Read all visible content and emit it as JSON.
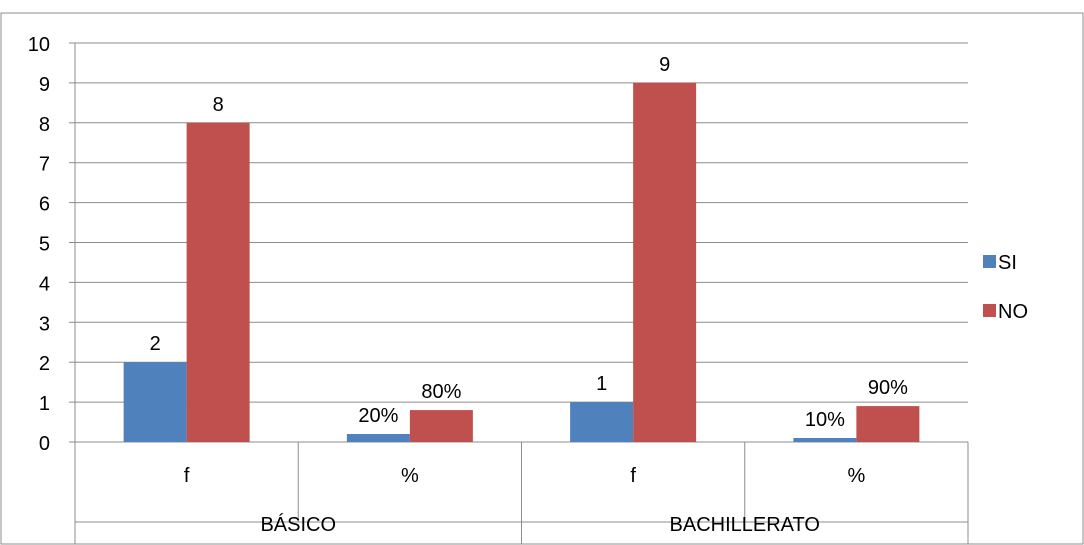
{
  "chart_data": {
    "type": "bar",
    "title": "",
    "xlabel": "",
    "ylabel": "",
    "ylim": [
      0,
      10
    ],
    "yticks": [
      "0",
      "1",
      "2",
      "3",
      "4",
      "5",
      "6",
      "7",
      "8",
      "9",
      "10"
    ],
    "grid": true,
    "legend_position": "right",
    "categories": [
      "f",
      "%",
      "f",
      "%"
    ],
    "groups": [
      {
        "label": "BÁSICO",
        "span": 2
      },
      {
        "label": "BACHILLERATO",
        "span": 2
      }
    ],
    "series": [
      {
        "name": "SI",
        "color": "#4F81BD",
        "values": [
          2,
          0.2,
          1,
          0.1
        ],
        "labels": [
          "2",
          "20%",
          "1",
          "10%"
        ]
      },
      {
        "name": "NO",
        "color": "#C0504D",
        "values": [
          8,
          0.8,
          9,
          0.9
        ],
        "labels": [
          "8",
          "80%",
          "9",
          "90%"
        ]
      }
    ]
  }
}
